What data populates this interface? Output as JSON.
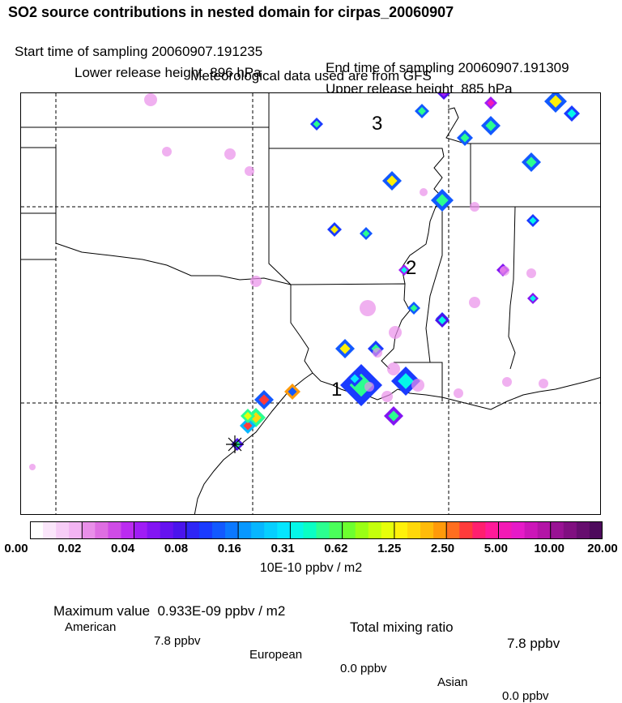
{
  "header": {
    "title": "SO2 source contributions in nested domain for cirpas_20060907",
    "start_label": "Start time of sampling 20060907.191235",
    "end_label": "End time of sampling 20060907.191309",
    "lower_label": "Lower release height  896 hPa",
    "upper_label": "Upper release height  885 hPa",
    "met_label": "Meteorological data used are from GFS"
  },
  "map": {
    "labels": [
      "1",
      "2",
      "3"
    ],
    "marker": "flight-position-marker"
  },
  "colorbar": {
    "ticks": [
      "0.00",
      "0.02",
      "0.04",
      "0.08",
      "0.16",
      "0.31",
      "0.62",
      "1.25",
      "2.50",
      "5.00",
      "10.00",
      "20.00"
    ],
    "colors": [
      "#ffffff",
      "#fbe6fb",
      "#f7cdf7",
      "#f2b4f2",
      "#e98fe9",
      "#de6ee2",
      "#cf4ce6",
      "#bb2cf0",
      "#a01df5",
      "#8315f2",
      "#6612f0",
      "#4a14ec",
      "#2e26f5",
      "#1a3bff",
      "#1259ff",
      "#0b78ff",
      "#0898ff",
      "#07b6ff",
      "#06cfff",
      "#05e6ff",
      "#05f7e8",
      "#09ffc4",
      "#2bff90",
      "#4aff5a",
      "#6dff2f",
      "#9aff14",
      "#c4ff0c",
      "#e6ff0a",
      "#fff10a",
      "#ffd80a",
      "#ffbb0a",
      "#ff9a0a",
      "#ff6e1f",
      "#ff3b3b",
      "#ff1f6e",
      "#ff1a99",
      "#f31ab5",
      "#e61ac8",
      "#cc16b8",
      "#b314a6",
      "#991294",
      "#800f80",
      "#660d6e",
      "#4d0a5c"
    ],
    "units": "10E-10 ppbv / m2"
  },
  "stats": {
    "max_label": "Maximum value  0.933E-09 ppbv / m2",
    "total_label": "Total mixing ratio",
    "total_value": "7.8 ppbv",
    "american_label": "American",
    "american_value": "7.8 ppbv",
    "european_label": "European",
    "european_value": "0.0 ppbv",
    "asian_label": "Asian",
    "asian_value": "0.0 ppbv"
  }
}
